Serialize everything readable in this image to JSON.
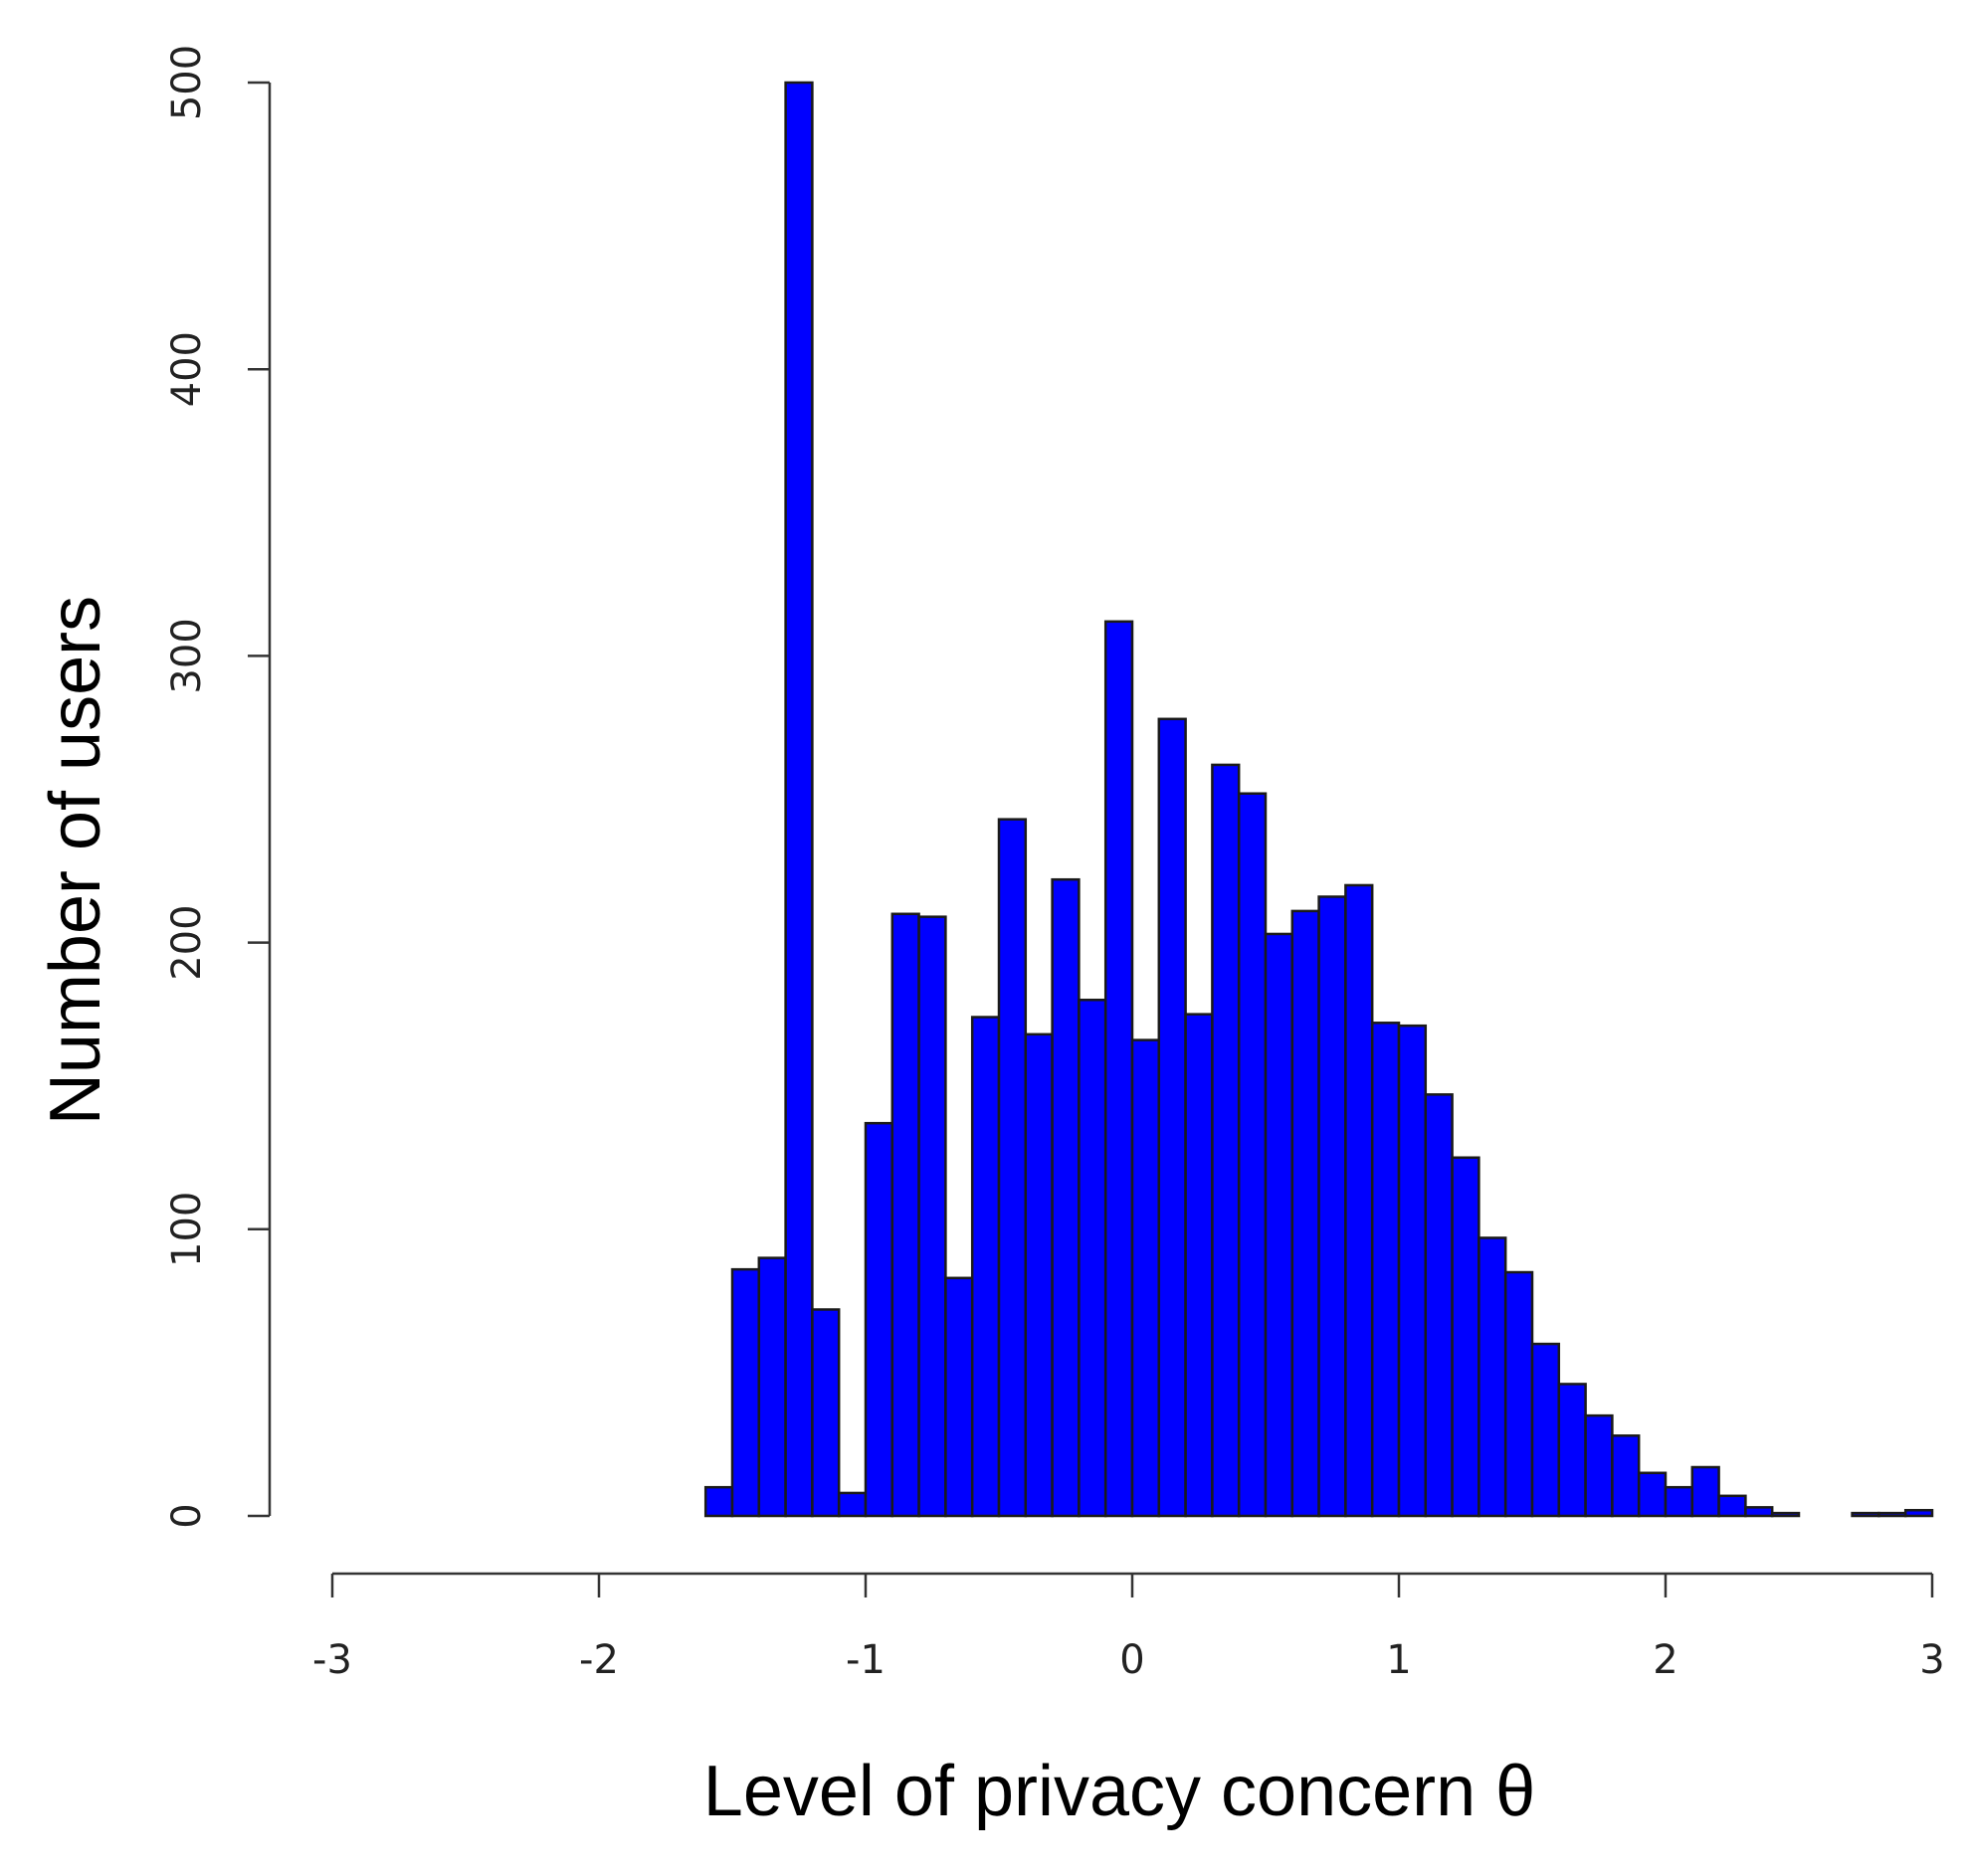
{
  "chart_data": {
    "type": "bar",
    "subtype": "histogram",
    "xlabel": "Level of privacy concern θ",
    "ylabel": "Number of users",
    "xlim": [
      -3,
      3
    ],
    "ylim": [
      0,
      500
    ],
    "x_ticks": [
      -3,
      -2,
      -1,
      0,
      1,
      2,
      3
    ],
    "y_ticks": [
      0,
      100,
      200,
      300,
      400,
      500
    ],
    "x_tick_labels": [
      "-3",
      "-2",
      "-1",
      "0",
      "1",
      "2",
      "3"
    ],
    "y_tick_labels": [
      "0",
      "100",
      "200",
      "300",
      "400",
      "500"
    ],
    "grid": false,
    "legend": "none",
    "bar_color": "#0000ff",
    "bin_edges": [
      -1.6,
      -1.5,
      -1.4,
      -1.3,
      -1.2,
      -1.1,
      -1.0,
      -0.9,
      -0.8,
      -0.7,
      -0.6,
      -0.5,
      -0.4,
      -0.3,
      -0.2,
      -0.1,
      0.0,
      0.1,
      0.2,
      0.3,
      0.4,
      0.5,
      0.6,
      0.7,
      0.8,
      0.9,
      1.0,
      1.1,
      1.2,
      1.3,
      1.4,
      1.5,
      1.6,
      1.7,
      1.8,
      1.9,
      2.0,
      2.1,
      2.2,
      2.3,
      2.4,
      2.5,
      2.6,
      2.7,
      2.8,
      2.9,
      3.0
    ],
    "values": [
      10,
      86,
      90,
      500,
      72,
      8,
      137,
      210,
      209,
      83,
      174,
      243,
      168,
      222,
      180,
      312,
      166,
      278,
      175,
      262,
      252,
      203,
      211,
      216,
      220,
      172,
      171,
      147,
      125,
      97,
      85,
      60,
      46,
      35,
      28,
      15,
      10,
      17,
      7,
      3,
      1,
      0,
      0,
      1,
      1,
      2
    ]
  }
}
